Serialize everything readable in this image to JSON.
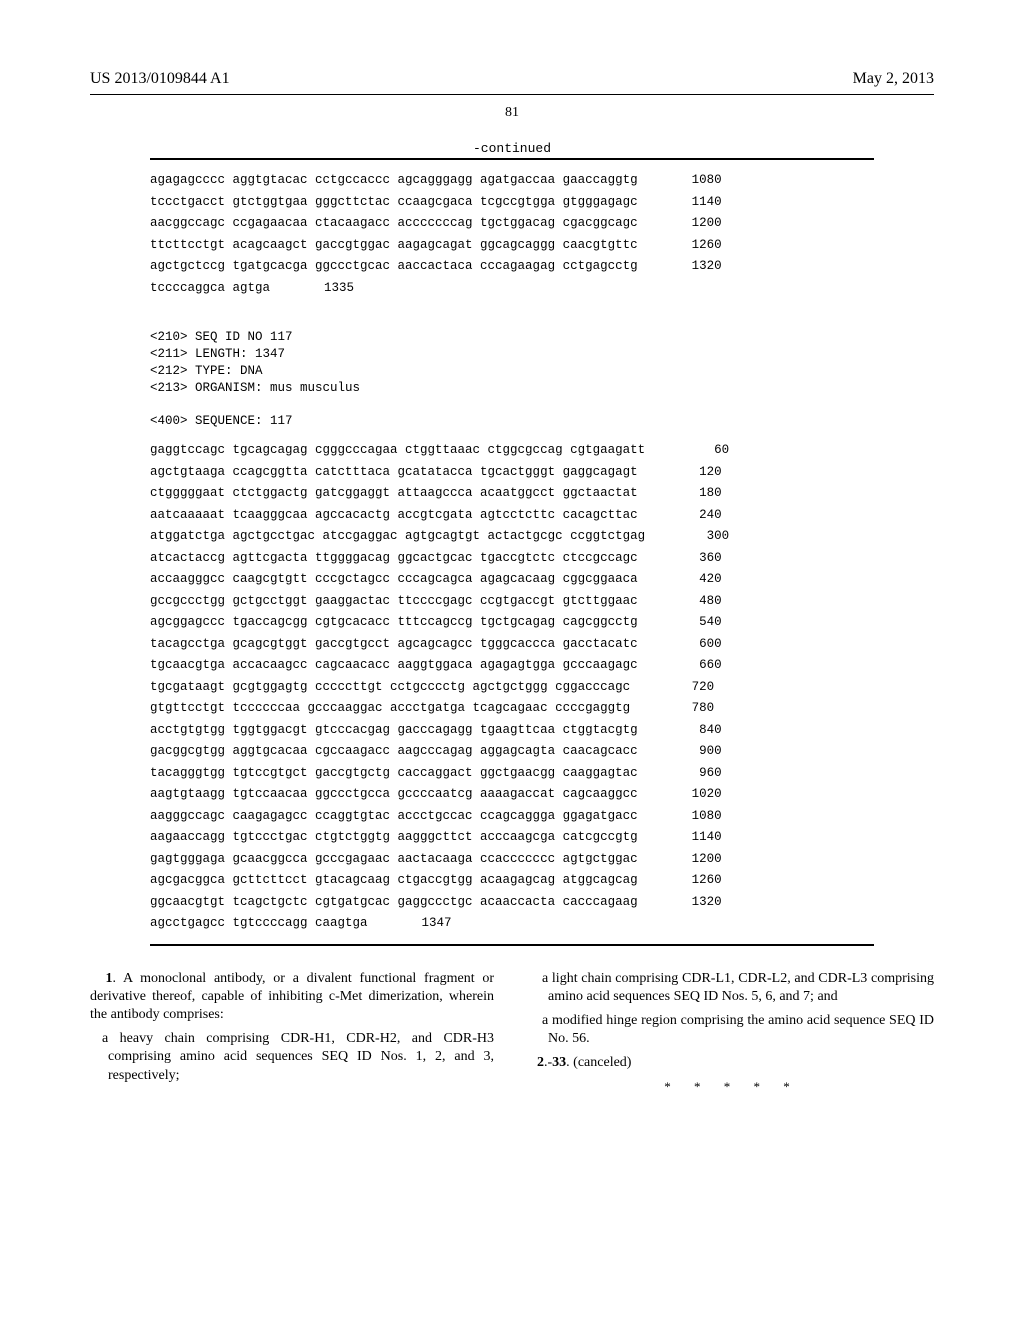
{
  "header": {
    "doc_number": "US 2013/0109844 A1",
    "date": "May 2, 2013"
  },
  "page_number": "81",
  "continued_label": "-continued",
  "seq1": {
    "rows": [
      {
        "t": "agagagcccc aggtgtacac cctgccaccc agcagggagg agatgaccaa gaaccaggtg",
        "n": "1080"
      },
      {
        "t": "tccctgacct gtctggtgaa gggcttctac ccaagcgaca tcgccgtgga gtgggagagc",
        "n": "1140"
      },
      {
        "t": "aacggccagc ccgagaacaa ctacaagacc acccccccag tgctggacag cgacggcagc",
        "n": "1200"
      },
      {
        "t": "ttcttcctgt acagcaagct gaccgtggac aagagcagat ggcagcaggg caacgtgttc",
        "n": "1260"
      },
      {
        "t": "agctgctccg tgatgcacga ggccctgcac aaccactaca cccagaagag cctgagcctg",
        "n": "1320"
      },
      {
        "t": "tccccaggca agtga",
        "n": "1335"
      }
    ]
  },
  "meta": {
    "line1": "<210> SEQ ID NO 117",
    "line2": "<211> LENGTH: 1347",
    "line3": "<212> TYPE: DNA",
    "line4": "<213> ORGANISM: mus musculus",
    "line5": "<400> SEQUENCE: 117"
  },
  "seq2": {
    "rows": [
      {
        "t": "gaggtccagc tgcagcagag cgggcccagaa ctggttaaac ctggcgccag cgtgaagatt",
        "n": "60"
      },
      {
        "t": "agctgtaaga ccagcggtta catctttaca gcatatacca tgcactgggt gaggcagagt",
        "n": "120"
      },
      {
        "t": "ctgggggaat ctctggactg gatcggaggt attaagccca acaatggcct ggctaactat",
        "n": "180"
      },
      {
        "t": "aatcaaaaat tcaagggcaa agccacactg accgtcgata agtcctcttc cacagcttac",
        "n": "240"
      },
      {
        "t": "atggatctga agctgcctgac atccgaggac agtgcagtgt actactgcgc ccggtctgag",
        "n": "300"
      },
      {
        "t": "atcactaccg agttcgacta ttggggacag ggcactgcac tgaccgtctc ctccgccagc",
        "n": "360"
      },
      {
        "t": "accaagggcc caagcgtgtt cccgctagcc cccagcagca agagcacaag cggcggaaca",
        "n": "420"
      },
      {
        "t": "gccgccctgg gctgcctggt gaaggactac ttccccgagc ccgtgaccgt gtcttggaac",
        "n": "480"
      },
      {
        "t": "agcggagccc tgaccagcgg cgtgcacacc tttccagccg tgctgcagag cagcggcctg",
        "n": "540"
      },
      {
        "t": "tacagcctga gcagcgtggt gaccgtgcct agcagcagcc tgggcaccca gacctacatc",
        "n": "600"
      },
      {
        "t": "tgcaacgtga accacaagcc cagcaacacc aaggtggaca agagagtgga gcccaagagc",
        "n": "660"
      },
      {
        "t": "tgcgataagt gcgtggagtg cccccttgt cctgcccctg agctgctggg cggacccagc",
        "n": "720"
      },
      {
        "t": "gtgttcctgt tccccccaa gcccaaggac accctgatga tcagcagaac ccccgaggtg",
        "n": "780"
      },
      {
        "t": "acctgtgtgg tggtggacgt gtcccacgag gacccagagg tgaagttcaa ctggtacgtg",
        "n": "840"
      },
      {
        "t": "gacggcgtgg aggtgcacaa cgccaagacc aagcccagag aggagcagta caacagcacc",
        "n": "900"
      },
      {
        "t": "tacagggtgg tgtccgtgct gaccgtgctg caccaggact ggctgaacgg caaggagtac",
        "n": "960"
      },
      {
        "t": "aagtgtaagg tgtccaacaa ggccctgcca gccccaatcg aaaagaccat cagcaaggcc",
        "n": "1020"
      },
      {
        "t": "aagggccagc caagagagcc ccaggtgtac accctgccac ccagcaggga ggagatgacc",
        "n": "1080"
      },
      {
        "t": "aagaaccagg tgtccctgac ctgtctggtg aagggcttct acccaagcga catcgccgtg",
        "n": "1140"
      },
      {
        "t": "gagtgggaga gcaacggcca gcccgagaac aactacaaga ccaccccccc agtgctggac",
        "n": "1200"
      },
      {
        "t": "agcgacggca gcttcttcct gtacagcaag ctgaccgtgg acaagagcag atggcagcag",
        "n": "1260"
      },
      {
        "t": "ggcaacgtgt tcagctgctc cgtgatgcac gaggccctgc acaaccacta cacccagaag",
        "n": "1320"
      },
      {
        "t": "agcctgagcc tgtccccagg caagtga",
        "n": "1347"
      }
    ]
  },
  "claims": {
    "left_p1_a": "1",
    "left_p1_b": ". A monoclonal antibody, or a divalent functional fragment or derivative thereof, capable of inhibiting c-Met dimerization, wherein the antibody comprises:",
    "left_p2": "a heavy chain comprising CDR-H1, CDR-H2, and CDR-H3 comprising amino acid sequences SEQ ID Nos. 1, 2, and 3, respectively;",
    "right_p1": "a light chain comprising CDR-L1, CDR-L2, and CDR-L3 comprising amino acid sequences SEQ ID Nos. 5, 6, and 7; and",
    "right_p2": "a modified hinge region comprising the amino acid sequence SEQ ID No. 56.",
    "right_p3_a": "2",
    "right_p3_b": ".-",
    "right_p3_c": "33",
    "right_p3_d": ". (canceled)"
  },
  "asterisks": "* * * * *"
}
